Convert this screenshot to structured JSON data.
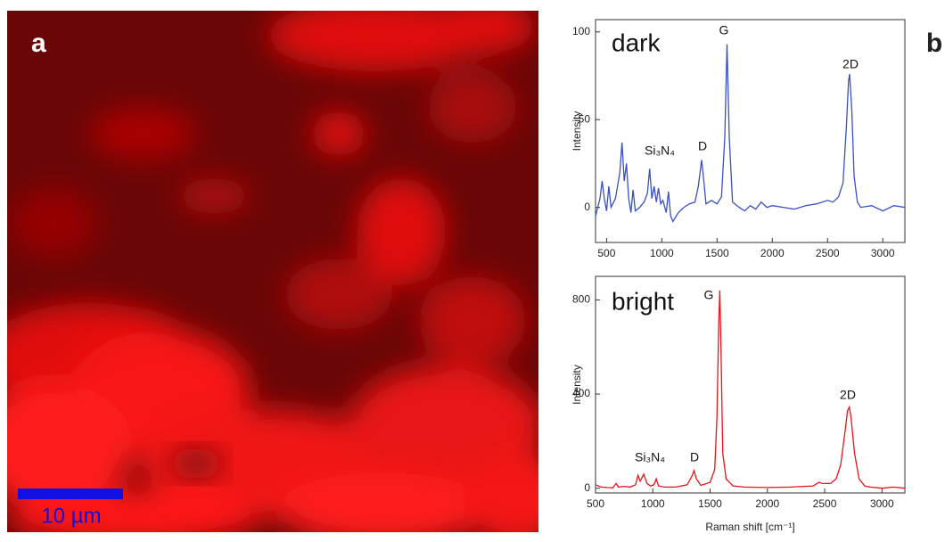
{
  "figure": {
    "panel_a_label": "a",
    "panel_b_label": "b",
    "scale_bar_label": "10 µm"
  },
  "chart_data": [
    {
      "type": "line",
      "color": "#3a4fc4",
      "y_label": "Intensity",
      "annotations": [
        "dark",
        "Si₃N₄",
        "D",
        "G",
        "2D"
      ],
      "xlim": [
        400,
        3200
      ],
      "xticks": [
        500,
        1000,
        1500,
        2000,
        2500,
        3000
      ],
      "ylim": [
        -20,
        107
      ],
      "yticks": [
        0,
        50,
        100
      ],
      "x": [
        400,
        440,
        460,
        480,
        500,
        520,
        540,
        580,
        620,
        640,
        660,
        680,
        700,
        720,
        740,
        760,
        800,
        840,
        870,
        890,
        910,
        930,
        950,
        970,
        990,
        1010,
        1040,
        1060,
        1080,
        1100,
        1150,
        1200,
        1250,
        1300,
        1330,
        1360,
        1380,
        1400,
        1450,
        1500,
        1540,
        1570,
        1590,
        1610,
        1640,
        1700,
        1750,
        1800,
        1850,
        1900,
        1950,
        2000,
        2100,
        2200,
        2300,
        2400,
        2500,
        2550,
        2600,
        2640,
        2670,
        2690,
        2700,
        2720,
        2740,
        2770,
        2800,
        2900,
        3000,
        3100,
        3200
      ],
      "values": [
        -5,
        5,
        15,
        5,
        -2,
        12,
        0,
        5,
        20,
        37,
        15,
        25,
        5,
        -3,
        10,
        -2,
        0,
        3,
        8,
        22,
        5,
        12,
        3,
        11,
        2,
        4,
        -3,
        9,
        -5,
        -8,
        -3,
        0,
        2,
        3,
        12,
        27,
        15,
        2,
        4,
        2,
        6,
        40,
        93,
        40,
        3,
        0,
        -2,
        1,
        -1,
        3,
        0,
        1,
        0,
        -1,
        1,
        2,
        4,
        3,
        6,
        14,
        45,
        72,
        76,
        55,
        18,
        3,
        0,
        1,
        -2,
        1,
        0
      ]
    },
    {
      "type": "line",
      "color": "#e8141c",
      "y_label": "Intensity",
      "x_label": "Raman shift [cm⁻¹]",
      "annotations": [
        "bright",
        "Si₃N₄",
        "D",
        "G",
        "2D"
      ],
      "xlim": [
        500,
        3200
      ],
      "xticks": [
        500,
        1000,
        1500,
        2000,
        2500,
        3000
      ],
      "ylim": [
        -20,
        900
      ],
      "yticks": [
        0,
        400,
        800
      ],
      "x": [
        500,
        550,
        600,
        650,
        680,
        700,
        750,
        800,
        850,
        870,
        890,
        920,
        950,
        980,
        1010,
        1030,
        1050,
        1100,
        1200,
        1300,
        1340,
        1360,
        1380,
        1420,
        1500,
        1540,
        1560,
        1575,
        1585,
        1595,
        1610,
        1640,
        1700,
        1800,
        2000,
        2200,
        2400,
        2450,
        2480,
        2550,
        2600,
        2640,
        2680,
        2700,
        2715,
        2730,
        2760,
        2800,
        2850,
        2900,
        3000,
        3100,
        3200
      ],
      "values": [
        15,
        5,
        3,
        2,
        20,
        5,
        8,
        5,
        15,
        55,
        30,
        60,
        20,
        10,
        15,
        40,
        10,
        5,
        5,
        15,
        50,
        75,
        40,
        12,
        25,
        80,
        300,
        700,
        840,
        600,
        150,
        40,
        10,
        5,
        3,
        5,
        10,
        25,
        20,
        20,
        40,
        100,
        250,
        330,
        345,
        300,
        150,
        40,
        10,
        5,
        0,
        5,
        0
      ]
    }
  ]
}
